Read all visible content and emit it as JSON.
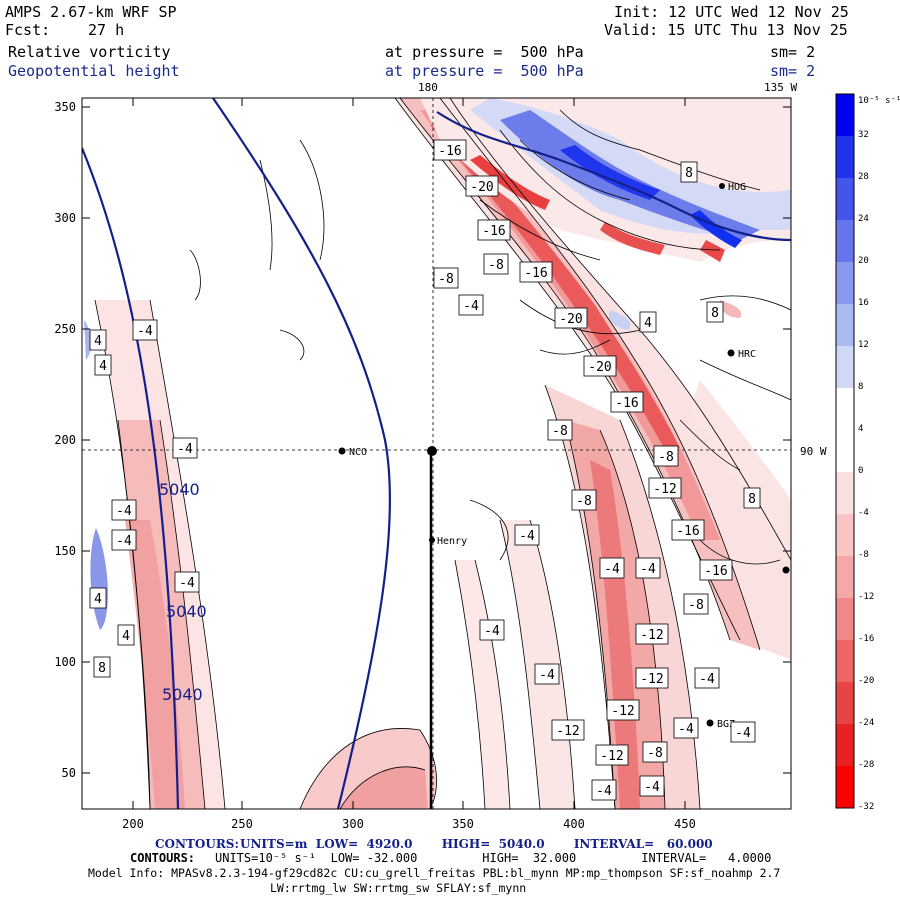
{
  "header": {
    "model": "AMPS 2.67-km WRF SP",
    "init": "Init: 12 UTC Wed 12 Nov 25",
    "fcst_label": "Fcst:",
    "fcst_value": "27 h",
    "valid": "Valid: 15 UTC Thu 13 Nov 25",
    "field1_name": "Relative vorticity",
    "field1_level": "at pressure =  500 hPa",
    "field1_sm": "sm= 2",
    "field2_name": "Geopotential height",
    "field2_level": "at pressure =  500 hPa",
    "field2_sm": "sm= 2"
  },
  "map": {
    "lon_top_label": "180",
    "lon_right_top_label": "135 W",
    "lon_right_mid_label": "90 W",
    "x_ticks": [
      "200",
      "250",
      "300",
      "350",
      "400",
      "450"
    ],
    "y_ticks": [
      "350",
      "300",
      "250",
      "200",
      "150",
      "100",
      "50"
    ],
    "stations": [
      "NCO",
      "Henry",
      "HRC",
      "BGZ",
      "HOG"
    ],
    "height_labels": [
      "5040",
      "5040",
      "5040"
    ],
    "vorticity_labels": [
      "-16",
      "-20",
      "-16",
      "-16",
      "-20",
      "-20",
      "-16",
      "-8",
      "-8",
      "-12",
      "-16",
      "-16",
      "-8",
      "-12",
      "-12",
      "-12",
      "-8",
      "-12",
      "-8",
      "-12",
      "-8",
      "-8",
      "-4",
      "-4",
      "-4",
      "-4",
      "-4",
      "-4",
      "-4",
      "-4",
      "-4",
      "-4",
      "-4",
      "-4",
      "-4",
      "-4",
      "-4",
      "-4",
      "4",
      "4",
      "4",
      "4",
      "4",
      "8",
      "8",
      "8",
      "8"
    ]
  },
  "colorbar": {
    "unit_label": "10⁻⁵ s⁻¹",
    "ticks": [
      "32",
      "28",
      "24",
      "20",
      "16",
      "12",
      "8",
      "4",
      "0",
      "-4",
      "-8",
      "-12",
      "-16",
      "-20",
      "-24",
      "-28",
      "-32"
    ],
    "colors": [
      "#0000ee",
      "#2233ee",
      "#4455ee",
      "#6677ee",
      "#8899ee",
      "#aabbf2",
      "#d0d8f8",
      "#ffffff",
      "#ffffff",
      "#fbe0e0",
      "#f8c4c4",
      "#f4a8a8",
      "#f08888",
      "#ec6666",
      "#e84444",
      "#e82222",
      "#ff0000"
    ]
  },
  "footer": {
    "line1_label": "CONTOURS:",
    "line1": "UNITS=m  LOW=  4920.0       HIGH=  5040.0       INTERVAL=   60.000",
    "line2_label": "CONTOURS:",
    "line2": "UNITS=10⁻⁵ s⁻¹  LOW= -32.000         HIGH=  32.000         INTERVAL=   4.0000",
    "line3": "Model Info: MPASv8.2.3-194-gf29cd82c CU:cu_grell_freitas PBL:bl_mynn MP:mp_thompson SF:sf_noahmp 2.7",
    "line4": "LW:rrtmg_lw SW:rrtmg_sw SFLAY:sf_mynn"
  }
}
